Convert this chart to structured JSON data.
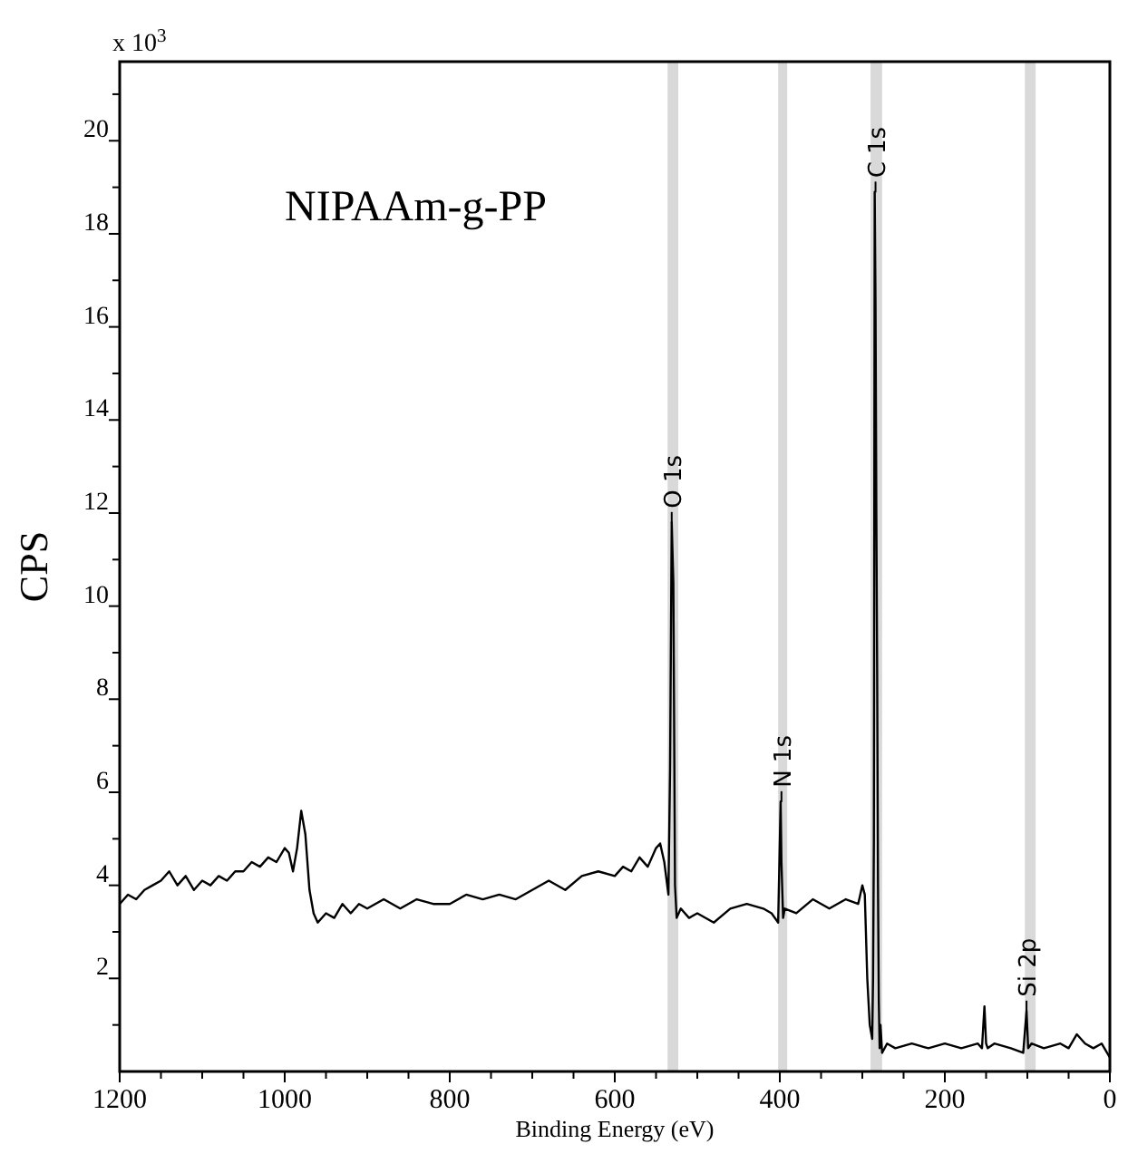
{
  "chart_data": {
    "type": "line",
    "title": "NIPAAm-g-PP",
    "xlabel": "Binding Energy (eV)",
    "ylabel": "CPS",
    "xlim": [
      1200,
      0
    ],
    "ylim": [
      0,
      21.7
    ],
    "xticks": [
      1200,
      {
        "value": 1150,
        "label": null
      },
      {
        "value": 1100,
        "label": null
      },
      {
        "value": 1050,
        "label": null
      },
      1000,
      {
        "value": 950,
        "label": null
      },
      {
        "value": 900,
        "label": null
      },
      {
        "value": 850,
        "label": null
      },
      800,
      {
        "value": 750,
        "label": null
      },
      {
        "value": 700,
        "label": null
      },
      {
        "value": 650,
        "label": null
      },
      600,
      {
        "value": 550,
        "label": null
      },
      {
        "value": 500,
        "label": null
      },
      {
        "value": 450,
        "label": null
      },
      400,
      {
        "value": 350,
        "label": null
      },
      {
        "value": 300,
        "label": null
      },
      {
        "value": 250,
        "label": null
      },
      200,
      {
        "value": 150,
        "label": null
      },
      {
        "value": 100,
        "label": null
      },
      {
        "value": 50,
        "label": null
      },
      0
    ],
    "yticks": [
      {
        "value": 1,
        "label": null
      },
      2,
      {
        "value": 3,
        "label": null
      },
      4,
      {
        "value": 5,
        "label": null
      },
      6,
      {
        "value": 7,
        "label": null
      },
      8,
      {
        "value": 9,
        "label": null
      },
      10,
      {
        "value": 11,
        "label": null
      },
      12,
      {
        "value": 13,
        "label": null
      },
      14,
      {
        "value": 15,
        "label": null
      },
      16,
      {
        "value": 17,
        "label": null
      },
      18,
      {
        "value": 19,
        "label": null
      },
      20,
      {
        "value": 21,
        "label": null
      }
    ],
    "grid": false,
    "marker": "none",
    "line_style": "solid",
    "bands": [
      {
        "axis": "x",
        "from": 523,
        "to": 536,
        "color": "#d9d9d9"
      },
      {
        "axis": "x",
        "from": 391,
        "to": 402,
        "color": "#d9d9d9"
      },
      {
        "axis": "x",
        "from": 276,
        "to": 290,
        "color": "#d9d9d9"
      },
      {
        "axis": "x",
        "from": 90,
        "to": 103,
        "color": "#d9d9d9"
      }
    ],
    "annotations": [
      "x 10$^{3}$",
      {
        "text": "O 1s",
        "x": 531,
        "y": 12.1
      },
      {
        "text": "N 1s",
        "x": 398,
        "y": 6.1
      },
      {
        "text": "C 1s",
        "x": 284,
        "y": 19.2
      },
      {
        "text": "Si 2p",
        "x": 101,
        "y": 1.6
      }
    ],
    "series": [
      {
        "color": "#000000",
        "x": [
          1200,
          1190,
          1180,
          1170,
          1160,
          1150,
          1140,
          1130,
          1120,
          1110,
          1100,
          1090,
          1080,
          1070,
          1060,
          1050,
          1040,
          1030,
          1020,
          1010,
          1000,
          995,
          990,
          985,
          980,
          975,
          970,
          965,
          960,
          950,
          940,
          930,
          920,
          910,
          900,
          880,
          860,
          840,
          820,
          800,
          780,
          760,
          740,
          720,
          700,
          680,
          660,
          640,
          620,
          600,
          590,
          580,
          570,
          560,
          550,
          545,
          540,
          535,
          533,
          531,
          529,
          527,
          525,
          520,
          510,
          500,
          480,
          460,
          440,
          420,
          410,
          402,
          399,
          398,
          396,
          394,
          380,
          360,
          340,
          320,
          305,
          300,
          297,
          294,
          291,
          288,
          287,
          286,
          285,
          284,
          283,
          282,
          281,
          280,
          279,
          278,
          276,
          270,
          260,
          240,
          220,
          200,
          180,
          160,
          155,
          152,
          150,
          148,
          140,
          120,
          105,
          101,
          99,
          95,
          80,
          60,
          50,
          40,
          30,
          20,
          10,
          0
        ],
        "values": [
          3.6,
          3.8,
          3.7,
          3.9,
          4.0,
          4.1,
          4.3,
          4.0,
          4.2,
          3.9,
          4.1,
          4.0,
          4.2,
          4.1,
          4.3,
          4.3,
          4.5,
          4.4,
          4.6,
          4.5,
          4.8,
          4.7,
          4.3,
          4.8,
          5.6,
          5.1,
          3.9,
          3.4,
          3.2,
          3.4,
          3.3,
          3.6,
          3.4,
          3.6,
          3.5,
          3.7,
          3.5,
          3.7,
          3.6,
          3.6,
          3.8,
          3.7,
          3.8,
          3.7,
          3.9,
          4.1,
          3.9,
          4.2,
          4.3,
          4.2,
          4.4,
          4.3,
          4.6,
          4.4,
          4.8,
          4.9,
          4.5,
          3.8,
          6.5,
          11.8,
          10.5,
          4.0,
          3.3,
          3.5,
          3.3,
          3.4,
          3.2,
          3.5,
          3.6,
          3.5,
          3.4,
          3.2,
          5.8,
          4.5,
          3.3,
          3.5,
          3.4,
          3.7,
          3.5,
          3.7,
          3.6,
          4.0,
          3.8,
          2.0,
          1.0,
          0.7,
          2.0,
          5.0,
          18.9,
          16.5,
          12.0,
          8.5,
          4.0,
          1.5,
          0.5,
          1.0,
          0.4,
          0.6,
          0.5,
          0.6,
          0.5,
          0.6,
          0.5,
          0.6,
          0.5,
          1.4,
          0.6,
          0.5,
          0.6,
          0.5,
          0.4,
          1.3,
          0.5,
          0.6,
          0.5,
          0.6,
          0.5,
          0.8,
          0.6,
          0.5,
          0.6,
          0.3
        ]
      }
    ]
  }
}
